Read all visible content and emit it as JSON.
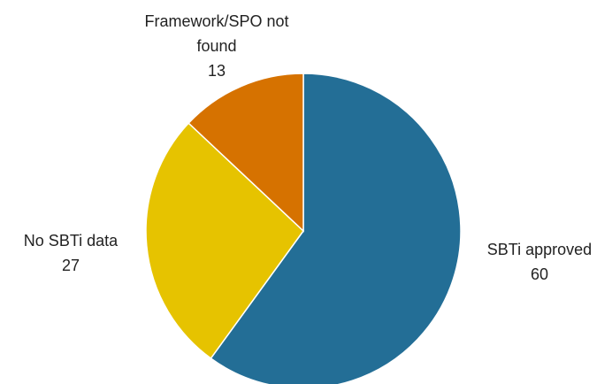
{
  "chart_data": {
    "type": "pie",
    "categories": [
      "SBTi approved",
      "No SBTi data",
      "Framework/SPO not found"
    ],
    "values": [
      60,
      27,
      13
    ],
    "colors": [
      "#236e96",
      "#e6c300",
      "#d67200"
    ]
  }
}
